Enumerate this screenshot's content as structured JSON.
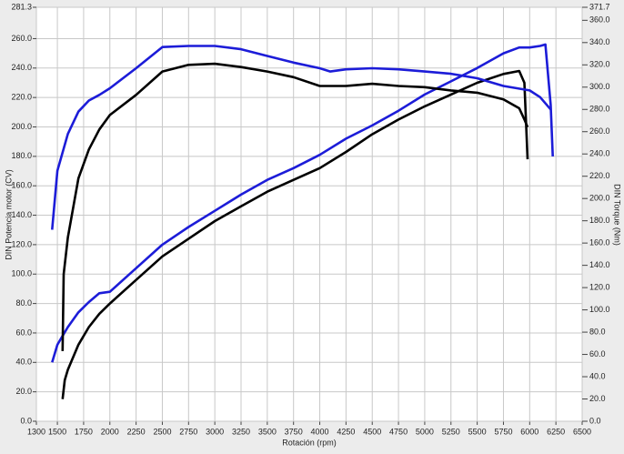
{
  "chart_data": {
    "type": "line",
    "xlabel": "Rotación (rpm)",
    "ylabel": "DIN Potencia motor (CV)",
    "y2label": "DIN Torque (Nm)",
    "xlim": [
      1300,
      6500
    ],
    "xticks": [
      1300,
      1500,
      1750,
      2000,
      2250,
      2500,
      2750,
      3000,
      3250,
      3500,
      3750,
      4000,
      4250,
      4500,
      4750,
      5000,
      5250,
      5500,
      5750,
      6000,
      6250,
      6500
    ],
    "ylim": [
      0,
      281.3
    ],
    "yticks": [
      {
        "value": 0,
        "label": "0.0"
      },
      {
        "value": 20,
        "label": "20.0"
      },
      {
        "value": 40,
        "label": "40.0"
      },
      {
        "value": 60,
        "label": "60.0"
      },
      {
        "value": 80,
        "label": "80.0"
      },
      {
        "value": 100,
        "label": "100.0"
      },
      {
        "value": 120,
        "label": "120.0"
      },
      {
        "value": 140,
        "label": "140.0"
      },
      {
        "value": 160,
        "label": "160.0"
      },
      {
        "value": 180,
        "label": "180.0"
      },
      {
        "value": 200,
        "label": "200.0"
      },
      {
        "value": 220,
        "label": "220.0"
      },
      {
        "value": 240,
        "label": "240.0"
      },
      {
        "value": 260,
        "label": "260.0"
      },
      281.3
    ],
    "y2lim": [
      0,
      371.7
    ],
    "y2ticks": [
      {
        "value": 0,
        "label": "0.0"
      },
      {
        "value": 20,
        "label": "20.0"
      },
      {
        "value": 40,
        "label": "40.0"
      },
      {
        "value": 60,
        "label": "60.0"
      },
      {
        "value": 80,
        "label": "80.0"
      },
      {
        "value": 100,
        "label": "100.0"
      },
      {
        "value": 120,
        "label": "120.0"
      },
      {
        "value": 140,
        "label": "140.0"
      },
      {
        "value": 160,
        "label": "160.0"
      },
      {
        "value": 180,
        "label": "180.0"
      },
      {
        "value": 200,
        "label": "200.0"
      },
      {
        "value": 220,
        "label": "220.0"
      },
      {
        "value": 240,
        "label": "240.0"
      },
      {
        "value": 260,
        "label": "260.0"
      },
      {
        "value": 280,
        "label": "280.0"
      },
      {
        "value": 300,
        "label": "300.0"
      },
      {
        "value": 320,
        "label": "320.0"
      },
      {
        "value": 340,
        "label": "340.0"
      },
      {
        "value": 360,
        "label": "360.0"
      },
      371.7
    ],
    "grid": true,
    "series": [
      {
        "color": "#1c1cd8",
        "x": [
          1450,
          1500,
          1550,
          1600,
          1700,
          1800,
          1900,
          2000,
          2250,
          2500,
          2750,
          3000,
          3250,
          3500,
          3750,
          4000,
          4250,
          4500,
          4750,
          5000,
          5250,
          5500,
          5750,
          5900,
          6000,
          6100,
          6150,
          6200,
          6220
        ],
        "values": [
          40,
          52,
          58,
          64,
          74,
          81,
          87,
          88,
          104,
          120,
          132,
          143,
          154,
          164,
          172,
          181,
          192,
          201,
          211,
          222,
          231,
          240,
          250,
          254,
          254,
          255,
          256,
          215,
          180
        ]
      },
      {
        "color": "#000000",
        "x": [
          1550,
          1570,
          1600,
          1700,
          1800,
          1900,
          2000,
          2250,
          2500,
          2750,
          3000,
          3250,
          3500,
          3750,
          4000,
          4250,
          4500,
          4750,
          5000,
          5250,
          5500,
          5750,
          5900,
          5950,
          5980
        ],
        "values": [
          15,
          28,
          35,
          52,
          64,
          73,
          80,
          96,
          112,
          124,
          136,
          146,
          156,
          164,
          172,
          183,
          195,
          205,
          214,
          222,
          230,
          236,
          238,
          230,
          178
        ]
      },
      {
        "color": "#1c1cd8",
        "axis": "y2",
        "x": [
          1450,
          1500,
          1600,
          1700,
          1800,
          1900,
          2000,
          2250,
          2500,
          2750,
          3000,
          3250,
          3500,
          3750,
          4000,
          4100,
          4250,
          4500,
          4750,
          5000,
          5250,
          5500,
          5750,
          6000,
          6100,
          6200
        ],
        "values": [
          172,
          225,
          258,
          278,
          288,
          293,
          299,
          317,
          336,
          337,
          337,
          334,
          328,
          322,
          317,
          314,
          316,
          317,
          316,
          314,
          312,
          308,
          301,
          297,
          291,
          280
        ]
      },
      {
        "color": "#000000",
        "axis": "y2",
        "x": [
          1550,
          1560,
          1600,
          1700,
          1800,
          1900,
          2000,
          2250,
          2500,
          2750,
          3000,
          3250,
          3500,
          3750,
          4000,
          4250,
          4500,
          4750,
          5000,
          5250,
          5500,
          5750,
          5900,
          5950,
          5980
        ],
        "values": [
          63,
          132,
          165,
          218,
          244,
          262,
          275,
          293,
          314,
          320,
          321,
          318,
          314,
          309,
          301,
          301,
          303,
          301,
          300,
          297,
          295,
          289,
          281,
          271,
          264
        ]
      }
    ]
  }
}
